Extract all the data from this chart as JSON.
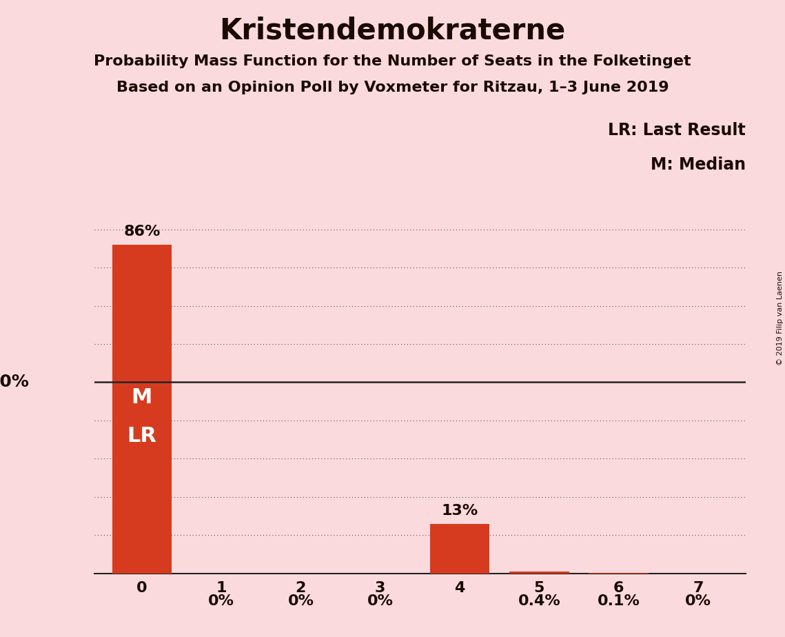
{
  "title": "Kristendemokraterne",
  "subtitle1": "Probability Mass Function for the Number of Seats in the Folketinget",
  "subtitle2": "Based on an Opinion Poll by Voxmeter for Ritzau, 1–3 June 2019",
  "copyright": "© 2019 Filip van Laenen",
  "categories": [
    0,
    1,
    2,
    3,
    4,
    5,
    6,
    7
  ],
  "values": [
    86.0,
    0.0,
    0.0,
    0.0,
    13.0,
    0.4,
    0.1,
    0.0
  ],
  "bar_labels": [
    "86%",
    "0%",
    "0%",
    "0%",
    "13%",
    "0.4%",
    "0.1%",
    "0%"
  ],
  "bar_color_main": "#d63b1f",
  "background_color": "#fadadd",
  "text_color": "#1a0a00",
  "grid_color": "#555555",
  "line50_color": "#222222",
  "legend_lr": "LR: Last Result",
  "legend_m": "M: Median",
  "ylim": [
    0,
    100
  ],
  "title_fontsize": 30,
  "subtitle_fontsize": 16,
  "label_fontsize": 15,
  "tick_fontsize": 16,
  "ml_fontsize": 22,
  "copyright_fontsize": 8
}
